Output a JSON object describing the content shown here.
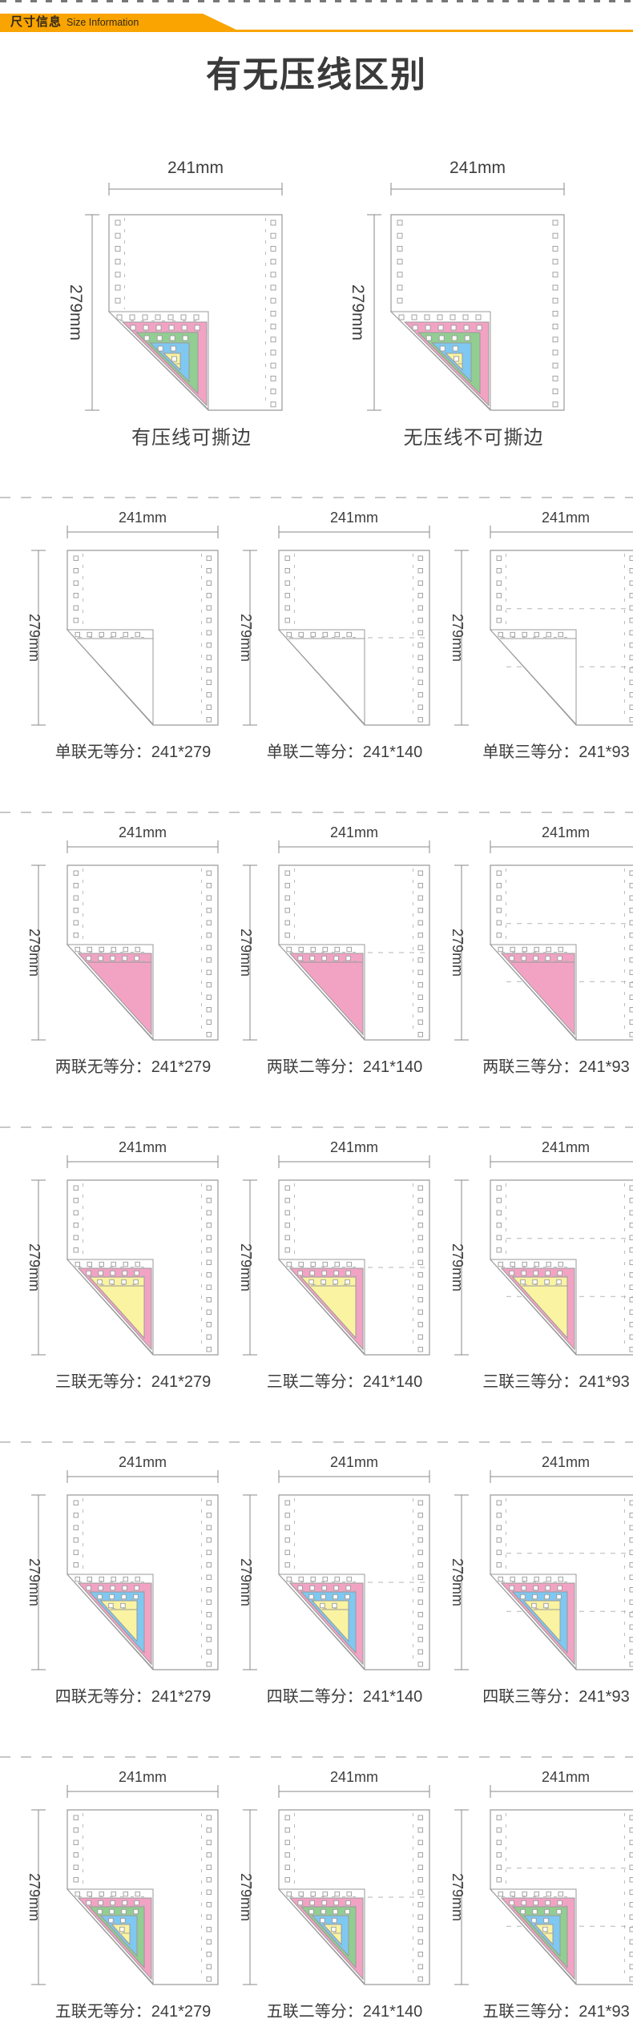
{
  "banner": {
    "title_cn": "尺寸信息",
    "title_en": "Size Information",
    "color": "#F9A400"
  },
  "page_title": "有无压线区别",
  "dims": {
    "width_label": "241mm",
    "height_label": "279mm"
  },
  "colors": {
    "pink": "#F2A3C4",
    "green": "#92CD92",
    "blue": "#7FC8F1",
    "yellow": "#FAF3A2",
    "outline": "#9A9A9A",
    "dash": "#B5B5B5",
    "dim_line": "#8A8A8A",
    "text": "#3D3D3D"
  },
  "comparison": {
    "items": [
      {
        "label": "有压线可撕边",
        "ply": 5,
        "perforation": true
      },
      {
        "label": "无压线不可撕边",
        "ply": 5,
        "perforation": false
      }
    ]
  },
  "grid": {
    "rows": [
      {
        "cells": [
          {
            "label": "单联无等分：241*279",
            "ply": 1,
            "divisions": 1,
            "perforation": true
          },
          {
            "label": "单联二等分：241*140",
            "ply": 1,
            "divisions": 2,
            "perforation": true
          },
          {
            "label": "单联三等分：241*93",
            "ply": 1,
            "divisions": 3,
            "perforation": true
          }
        ]
      },
      {
        "cells": [
          {
            "label": "两联无等分：241*279",
            "ply": 2,
            "divisions": 1,
            "perforation": true
          },
          {
            "label": "两联二等分：241*140",
            "ply": 2,
            "divisions": 2,
            "perforation": true
          },
          {
            "label": "两联三等分：241*93",
            "ply": 2,
            "divisions": 3,
            "perforation": true
          }
        ]
      },
      {
        "cells": [
          {
            "label": "三联无等分：241*279",
            "ply": 3,
            "divisions": 1,
            "perforation": true
          },
          {
            "label": "三联二等分：241*140",
            "ply": 3,
            "divisions": 2,
            "perforation": true
          },
          {
            "label": "三联三等分：241*93",
            "ply": 3,
            "divisions": 3,
            "perforation": true
          }
        ]
      },
      {
        "cells": [
          {
            "label": "四联无等分：241*279",
            "ply": 4,
            "divisions": 1,
            "perforation": true
          },
          {
            "label": "四联二等分：241*140",
            "ply": 4,
            "divisions": 2,
            "perforation": true
          },
          {
            "label": "四联三等分：241*93",
            "ply": 4,
            "divisions": 3,
            "perforation": true
          }
        ]
      },
      {
        "cells": [
          {
            "label": "五联无等分：241*279",
            "ply": 5,
            "divisions": 1,
            "perforation": true
          },
          {
            "label": "五联二等分：241*140",
            "ply": 5,
            "divisions": 2,
            "perforation": true
          },
          {
            "label": "五联三等分：241*93",
            "ply": 5,
            "divisions": 3,
            "perforation": true
          }
        ]
      }
    ]
  }
}
